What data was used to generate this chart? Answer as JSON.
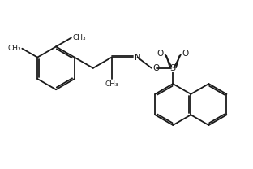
{
  "bg_color": "#ffffff",
  "line_color": "#1a1a1a",
  "line_width": 1.3,
  "fig_width": 3.12,
  "fig_height": 2.08,
  "dpi": 100,
  "xlim": [
    0,
    10
  ],
  "ylim": [
    0,
    6.5
  ]
}
